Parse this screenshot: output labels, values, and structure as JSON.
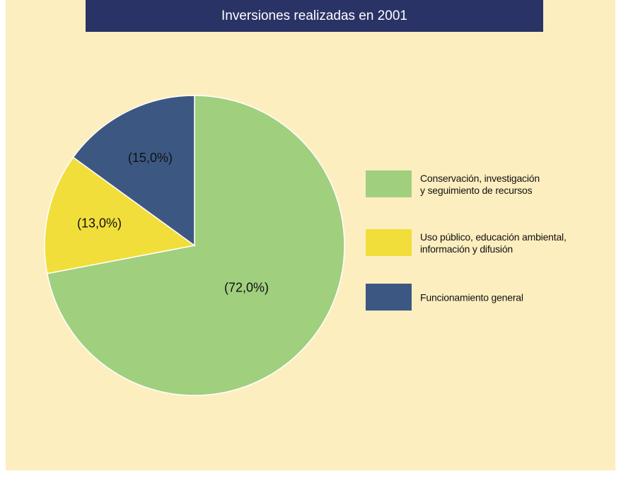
{
  "chart_data": {
    "type": "pie",
    "title": "Inversiones realizadas en 2001",
    "categories": [
      "Conservación, investigación\ny seguimiento de recursos",
      "Uso público, educación ambiental,\ninformación y difusión",
      "Funcionamiento general"
    ],
    "values": [
      72,
      13,
      15
    ],
    "value_labels": [
      "(72,0%)",
      "(13,0%)",
      "(15,0%)"
    ],
    "colors": [
      "#a0cf7e",
      "#f2de3a",
      "#3c5882"
    ],
    "legend": "right"
  }
}
